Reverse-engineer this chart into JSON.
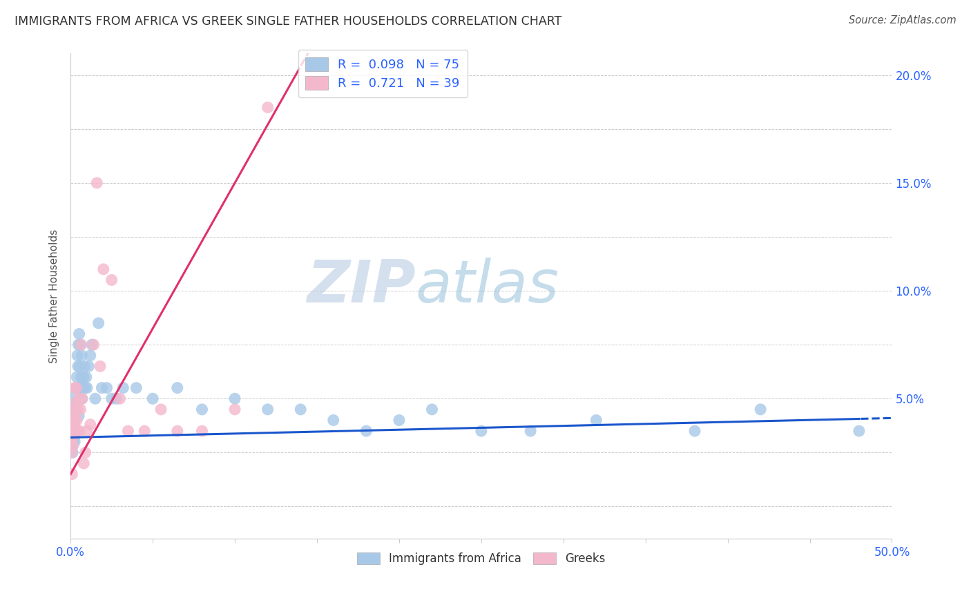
{
  "title": "IMMIGRANTS FROM AFRICA VS GREEK SINGLE FATHER HOUSEHOLDS CORRELATION CHART",
  "source": "Source: ZipAtlas.com",
  "ylabel": "Single Father Households",
  "xlim": [
    0.0,
    50.0
  ],
  "ylim": [
    -1.5,
    21.0
  ],
  "legend_blue_r": "0.098",
  "legend_blue_n": "75",
  "legend_pink_r": "0.721",
  "legend_pink_n": "39",
  "blue_color": "#a8c8e8",
  "pink_color": "#f4b8cc",
  "blue_line_color": "#1a56cc",
  "pink_line_color": "#e0306a",
  "watermark_text": "ZIPatlas",
  "watermark_color": "#c5d8ee",
  "background_color": "#ffffff",
  "grid_color": "#cccccc",
  "title_color": "#333333",
  "source_color": "#555555",
  "axis_label_color": "#2962ff",
  "ylabel_color": "#555555",
  "blue_scatter_x": [
    0.05,
    0.06,
    0.07,
    0.08,
    0.09,
    0.1,
    0.1,
    0.11,
    0.12,
    0.13,
    0.14,
    0.15,
    0.15,
    0.16,
    0.17,
    0.18,
    0.19,
    0.2,
    0.2,
    0.22,
    0.23,
    0.25,
    0.27,
    0.28,
    0.3,
    0.32,
    0.35,
    0.38,
    0.4,
    0.42,
    0.45,
    0.48,
    0.5,
    0.52,
    0.55,
    0.58,
    0.6,
    0.62,
    0.65,
    0.68,
    0.7,
    0.72,
    0.75,
    0.8,
    0.85,
    0.9,
    0.95,
    1.0,
    1.1,
    1.2,
    1.3,
    1.5,
    1.7,
    1.9,
    2.2,
    2.5,
    2.8,
    3.2,
    4.0,
    5.0,
    6.5,
    8.0,
    10.0,
    12.0,
    14.0,
    16.0,
    18.0,
    20.0,
    22.0,
    25.0,
    28.0,
    32.0,
    38.0,
    42.0,
    48.0
  ],
  "blue_scatter_y": [
    3.2,
    3.5,
    2.8,
    3.0,
    3.8,
    3.5,
    4.0,
    3.2,
    2.5,
    3.8,
    4.2,
    3.6,
    3.0,
    4.5,
    3.8,
    4.0,
    3.5,
    3.2,
    4.2,
    3.8,
    4.5,
    3.0,
    4.8,
    5.2,
    4.5,
    5.5,
    4.8,
    6.0,
    5.5,
    7.0,
    6.5,
    7.5,
    4.2,
    8.0,
    6.5,
    5.5,
    7.5,
    5.5,
    6.0,
    7.0,
    5.0,
    6.0,
    5.5,
    6.0,
    6.5,
    5.5,
    6.0,
    5.5,
    6.5,
    7.0,
    7.5,
    5.0,
    8.5,
    5.5,
    5.5,
    5.0,
    5.0,
    5.5,
    5.5,
    5.0,
    5.5,
    4.5,
    5.0,
    4.5,
    4.5,
    4.0,
    3.5,
    4.0,
    4.5,
    3.5,
    3.5,
    4.0,
    3.5,
    4.5,
    3.5
  ],
  "pink_scatter_x": [
    0.05,
    0.07,
    0.09,
    0.1,
    0.12,
    0.14,
    0.16,
    0.18,
    0.2,
    0.22,
    0.25,
    0.28,
    0.3,
    0.35,
    0.38,
    0.42,
    0.45,
    0.5,
    0.55,
    0.6,
    0.65,
    0.7,
    0.8,
    0.9,
    1.0,
    1.2,
    1.4,
    1.6,
    1.8,
    2.0,
    2.5,
    3.0,
    3.5,
    4.5,
    5.5,
    6.5,
    8.0,
    10.0,
    12.0
  ],
  "pink_scatter_y": [
    2.5,
    3.0,
    1.5,
    3.2,
    4.0,
    2.8,
    4.5,
    3.5,
    4.2,
    3.8,
    5.5,
    4.8,
    3.5,
    5.5,
    4.0,
    3.5,
    4.5,
    5.0,
    3.5,
    4.5,
    7.5,
    5.0,
    2.0,
    2.5,
    3.5,
    3.8,
    7.5,
    15.0,
    6.5,
    11.0,
    10.5,
    5.0,
    3.5,
    3.5,
    4.5,
    3.5,
    3.5,
    4.5,
    18.5
  ],
  "blue_trend_slope": 0.018,
  "blue_trend_intercept": 3.2,
  "pink_trend_slope": 1.35,
  "pink_trend_intercept": 1.5,
  "blue_solid_end": 48.0,
  "pink_solid_end": 14.0
}
